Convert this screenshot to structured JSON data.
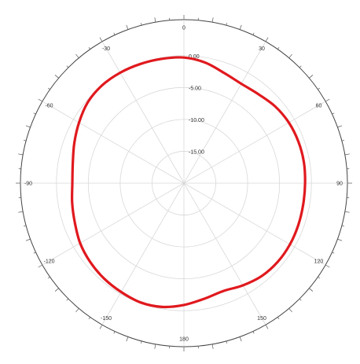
{
  "chart_data": {
    "type": "polar-line",
    "title": "",
    "angle_ticks": [
      "0",
      "30",
      "60",
      "90",
      "120",
      "150",
      "180",
      "-150",
      "-120",
      "-90",
      "-60",
      "-30"
    ],
    "radial_tick_labels": [
      "0.00",
      "-5.00",
      "-10.00",
      "-15.00"
    ],
    "radial_range": [
      -20,
      0
    ],
    "angle_unit": "degrees",
    "zero_direction": "top",
    "angle_direction": "clockwise",
    "grid": true,
    "series": [
      {
        "color": "#e0191e",
        "angles": [
          0,
          10,
          20,
          30,
          40,
          50,
          60,
          70,
          80,
          90,
          100,
          110,
          120,
          130,
          140,
          150,
          160,
          170,
          180,
          190,
          200,
          210,
          220,
          230,
          240,
          250,
          260,
          270,
          280,
          290,
          300,
          310,
          320,
          330,
          340,
          350
        ],
        "values": [
          -0.3,
          -0.8,
          -1.6,
          -2.0,
          -1.8,
          -1.3,
          -1.0,
          -0.9,
          -0.9,
          -1.0,
          -1.0,
          -0.9,
          -0.8,
          -0.8,
          -1.0,
          -1.5,
          -2.0,
          -1.6,
          -0.9,
          -0.3,
          -0.1,
          -0.3,
          -0.5,
          -0.8,
          -1.2,
          -1.8,
          -2.2,
          -2.5,
          -2.3,
          -1.7,
          -1.0,
          -0.3,
          0.0,
          0.0,
          -0.1,
          -0.2
        ]
      }
    ]
  }
}
